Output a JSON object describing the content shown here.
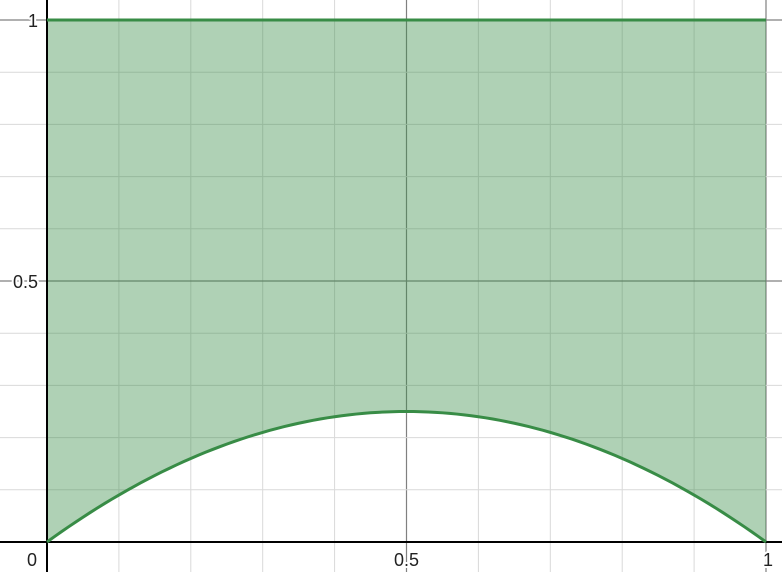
{
  "chart_data": {
    "type": "area",
    "title": "",
    "xlabel": "",
    "ylabel": "",
    "xlim": [
      0,
      1
    ],
    "ylim": [
      0,
      1
    ],
    "grid": true,
    "x_ticks": [
      "0",
      "0.5",
      "1"
    ],
    "y_ticks": [
      "0.5",
      "1"
    ],
    "series": [
      {
        "x": [
          0,
          0.1,
          0.2,
          0.3,
          0.4,
          0.5,
          0.6,
          0.7,
          0.8,
          0.9,
          1
        ],
        "y": [
          1,
          1,
          1,
          1,
          1,
          1,
          1,
          1,
          1,
          1,
          1
        ]
      },
      {
        "x": [
          0,
          0.1,
          0.2,
          0.3,
          0.4,
          0.5,
          0.6,
          0.7,
          0.8,
          0.9,
          1
        ],
        "y": [
          0,
          0.09,
          0.16,
          0.21,
          0.24,
          0.25,
          0.24,
          0.21,
          0.16,
          0.09,
          0
        ]
      }
    ],
    "shaded_region": {
      "between": [
        0,
        1
      ],
      "x_range": [
        0,
        1
      ]
    }
  },
  "colors": {
    "fill": "#388c46",
    "line": "#388c46",
    "axis": "#000000",
    "grid_major": "#808080",
    "grid_minor": "#d9d9d9"
  }
}
